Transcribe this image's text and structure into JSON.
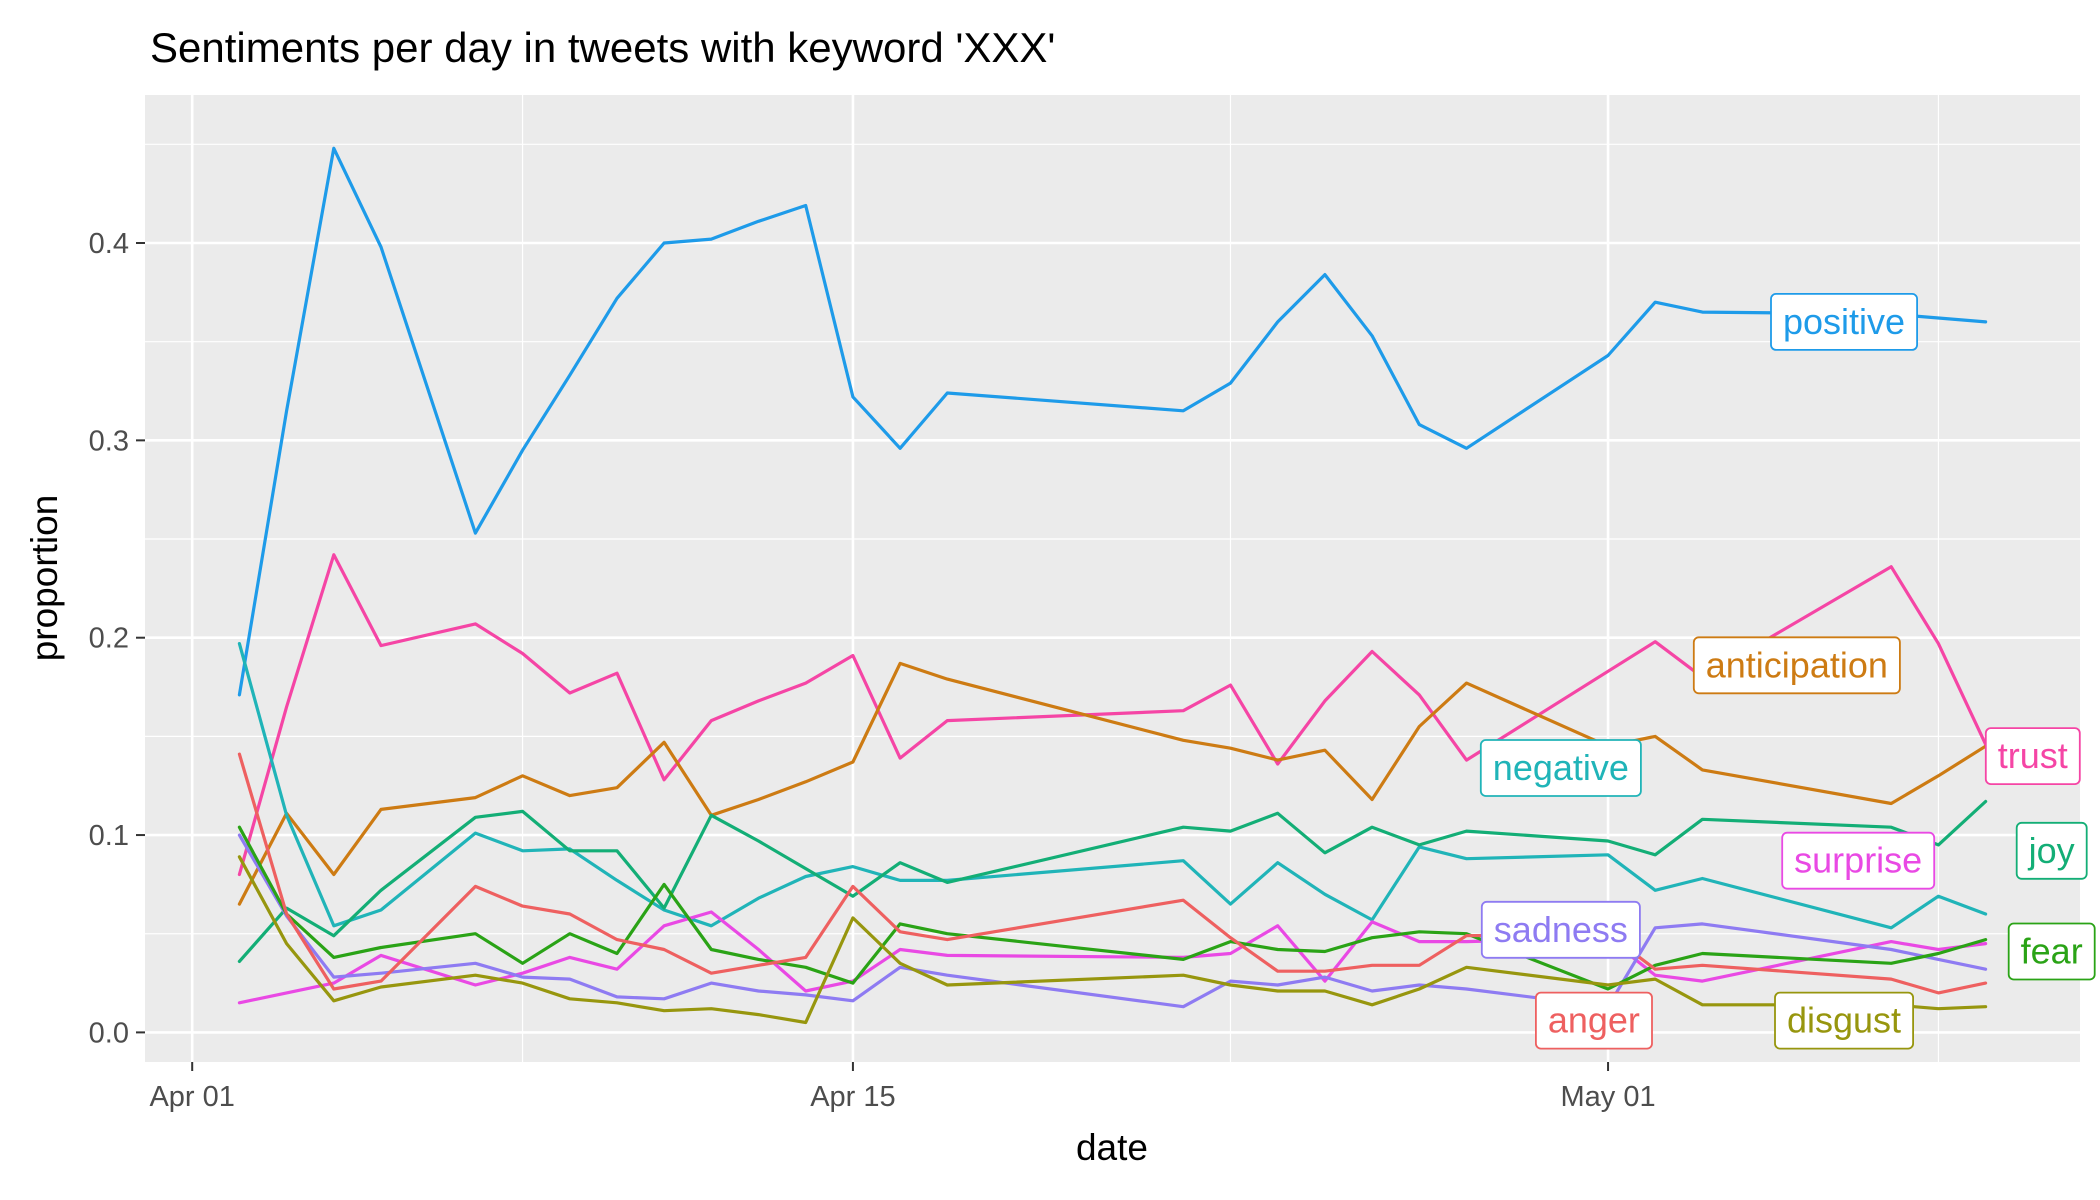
{
  "chart_data": {
    "type": "line",
    "title": "Sentiments per day in tweets with keyword 'XXX'",
    "xlabel": "date",
    "ylabel": "proportion",
    "xlim": [
      "2020-03-31",
      "2020-05-11"
    ],
    "ylim": [
      -0.015,
      0.475
    ],
    "x_ticks": [
      {
        "date": "2020-04-01",
        "label": "Apr 01"
      },
      {
        "date": "2020-04-15",
        "label": "Apr 15"
      },
      {
        "date": "2020-05-01",
        "label": "May 01"
      }
    ],
    "x_minor_ticks": [
      "2020-04-08",
      "2020-04-23",
      "2020-05-08"
    ],
    "y_ticks": [
      0.0,
      0.1,
      0.2,
      0.3,
      0.4
    ],
    "y_tick_labels": [
      "0.0",
      "0.1",
      "0.2",
      "0.3",
      "0.4"
    ],
    "y_minor_ticks": [
      0.05,
      0.15,
      0.25,
      0.35,
      0.45
    ],
    "grid": true,
    "legend": "direct labels on lines",
    "x": [
      "2020-04-02",
      "2020-04-03",
      "2020-04-04",
      "2020-04-05",
      "2020-04-07",
      "2020-04-08",
      "2020-04-09",
      "2020-04-10",
      "2020-04-11",
      "2020-04-12",
      "2020-04-13",
      "2020-04-14",
      "2020-04-15",
      "2020-04-16",
      "2020-04-17",
      "2020-04-22",
      "2020-04-23",
      "2020-04-24",
      "2020-04-25",
      "2020-04-26",
      "2020-04-27",
      "2020-04-28",
      "2020-05-01",
      "2020-05-02",
      "2020-05-03",
      "2020-05-07",
      "2020-05-08",
      "2020-05-09"
    ],
    "series": [
      {
        "name": "positive",
        "color": "#1E9BE9",
        "values": [
          0.171,
          0.315,
          0.448,
          0.398,
          0.253,
          0.295,
          0.333,
          0.372,
          0.4,
          0.402,
          0.411,
          0.419,
          0.322,
          0.296,
          0.324,
          0.315,
          0.329,
          0.36,
          0.384,
          0.353,
          0.308,
          0.296,
          0.343,
          0.37,
          0.365,
          0.364,
          0.362,
          0.36
        ]
      },
      {
        "name": "trust",
        "color": "#F545A5",
        "values": [
          0.08,
          0.165,
          0.242,
          0.196,
          0.207,
          0.192,
          0.172,
          0.182,
          0.128,
          0.158,
          0.168,
          0.177,
          0.191,
          0.139,
          0.158,
          0.163,
          0.176,
          0.136,
          0.168,
          0.193,
          0.171,
          0.138,
          0.183,
          0.198,
          0.18,
          0.236,
          0.197,
          0.146
        ]
      },
      {
        "name": "anticipation",
        "color": "#CD7B13",
        "values": [
          0.065,
          0.111,
          0.08,
          0.113,
          0.119,
          0.13,
          0.12,
          0.124,
          0.147,
          0.11,
          0.118,
          0.127,
          0.137,
          0.187,
          0.179,
          0.148,
          0.144,
          0.138,
          0.143,
          0.118,
          0.155,
          0.177,
          0.145,
          0.15,
          0.133,
          0.116,
          0.13,
          0.145
        ]
      },
      {
        "name": "negative",
        "color": "#20B4B8",
        "values": [
          0.197,
          0.11,
          0.054,
          0.062,
          0.101,
          0.092,
          0.093,
          0.077,
          0.062,
          0.054,
          0.068,
          0.079,
          0.084,
          0.077,
          0.077,
          0.087,
          0.065,
          0.086,
          0.07,
          0.057,
          0.094,
          0.088,
          0.09,
          0.072,
          0.078,
          0.053,
          0.069,
          0.06
        ]
      },
      {
        "name": "joy",
        "color": "#13AE76",
        "values": [
          0.036,
          0.063,
          0.049,
          0.072,
          0.109,
          0.112,
          0.092,
          0.092,
          0.063,
          0.11,
          0.097,
          0.083,
          0.069,
          0.086,
          0.076,
          0.104,
          0.102,
          0.111,
          0.091,
          0.104,
          0.095,
          0.102,
          0.097,
          0.09,
          0.108,
          0.104,
          0.095,
          0.117
        ]
      },
      {
        "name": "surprise",
        "color": "#E949E4",
        "values": [
          0.015,
          0.02,
          0.025,
          0.039,
          0.024,
          0.03,
          0.038,
          0.032,
          0.054,
          0.061,
          0.042,
          0.021,
          0.026,
          0.042,
          0.039,
          0.038,
          0.04,
          0.054,
          0.026,
          0.056,
          0.046,
          0.046,
          0.048,
          0.029,
          0.026,
          0.046,
          0.042,
          0.045
        ]
      },
      {
        "name": "sadness",
        "color": "#8E7BF2",
        "values": [
          0.1,
          0.059,
          0.028,
          0.03,
          0.035,
          0.028,
          0.027,
          0.018,
          0.017,
          0.025,
          0.021,
          0.019,
          0.016,
          0.033,
          0.029,
          0.013,
          0.026,
          0.024,
          0.028,
          0.021,
          0.024,
          0.022,
          0.013,
          0.053,
          0.055,
          0.042,
          0.037,
          0.032
        ]
      },
      {
        "name": "fear",
        "color": "#2AA316",
        "values": [
          0.104,
          0.06,
          0.038,
          0.043,
          0.05,
          0.035,
          0.05,
          0.04,
          0.075,
          0.042,
          0.037,
          0.033,
          0.025,
          0.055,
          0.05,
          0.037,
          0.046,
          0.042,
          0.041,
          0.048,
          0.051,
          0.05,
          0.022,
          0.034,
          0.04,
          0.035,
          0.04,
          0.047
        ]
      },
      {
        "name": "anger",
        "color": "#EE6060",
        "values": [
          0.141,
          0.06,
          0.022,
          0.026,
          0.074,
          0.064,
          0.06,
          0.047,
          0.042,
          0.03,
          0.034,
          0.038,
          0.074,
          0.051,
          0.047,
          0.067,
          0.048,
          0.031,
          0.031,
          0.034,
          0.034,
          0.049,
          0.05,
          0.032,
          0.034,
          0.027,
          0.02,
          0.025
        ]
      },
      {
        "name": "disgust",
        "color": "#97960E",
        "values": [
          0.089,
          0.045,
          0.016,
          0.023,
          0.029,
          0.025,
          0.017,
          0.015,
          0.011,
          0.012,
          0.009,
          0.005,
          0.058,
          0.035,
          0.024,
          0.029,
          0.024,
          0.021,
          0.021,
          0.014,
          0.022,
          0.033,
          0.024,
          0.027,
          0.014,
          0.014,
          0.012,
          0.013
        ]
      }
    ],
    "labels": [
      {
        "text": "positive",
        "color": "#1E9BE9",
        "date": "2020-05-06",
        "y": 0.36
      },
      {
        "text": "anticipation",
        "color": "#CD7B13",
        "date": "2020-05-05",
        "y": 0.186
      },
      {
        "text": "trust",
        "color": "#F545A5",
        "date": "2020-05-10",
        "y": 0.14
      },
      {
        "text": "negative",
        "color": "#20B4B8",
        "date": "2020-04-30",
        "y": 0.134
      },
      {
        "text": "surprise",
        "color": "#E949E4",
        "date": "2020-05-06.3",
        "y": 0.087
      },
      {
        "text": "joy",
        "color": "#13AE76",
        "date": "2020-05-10.4",
        "y": 0.092
      },
      {
        "text": "sadness",
        "color": "#8E7BF2",
        "date": "2020-04-30",
        "y": 0.052
      },
      {
        "text": "fear",
        "color": "#2AA316",
        "date": "2020-05-10.4",
        "y": 0.041
      },
      {
        "text": "anger",
        "color": "#EE6060",
        "date": "2020-04-30.7",
        "y": 0.006
      },
      {
        "text": "disgust",
        "color": "#97960E",
        "date": "2020-05-06",
        "y": 0.006
      }
    ]
  }
}
